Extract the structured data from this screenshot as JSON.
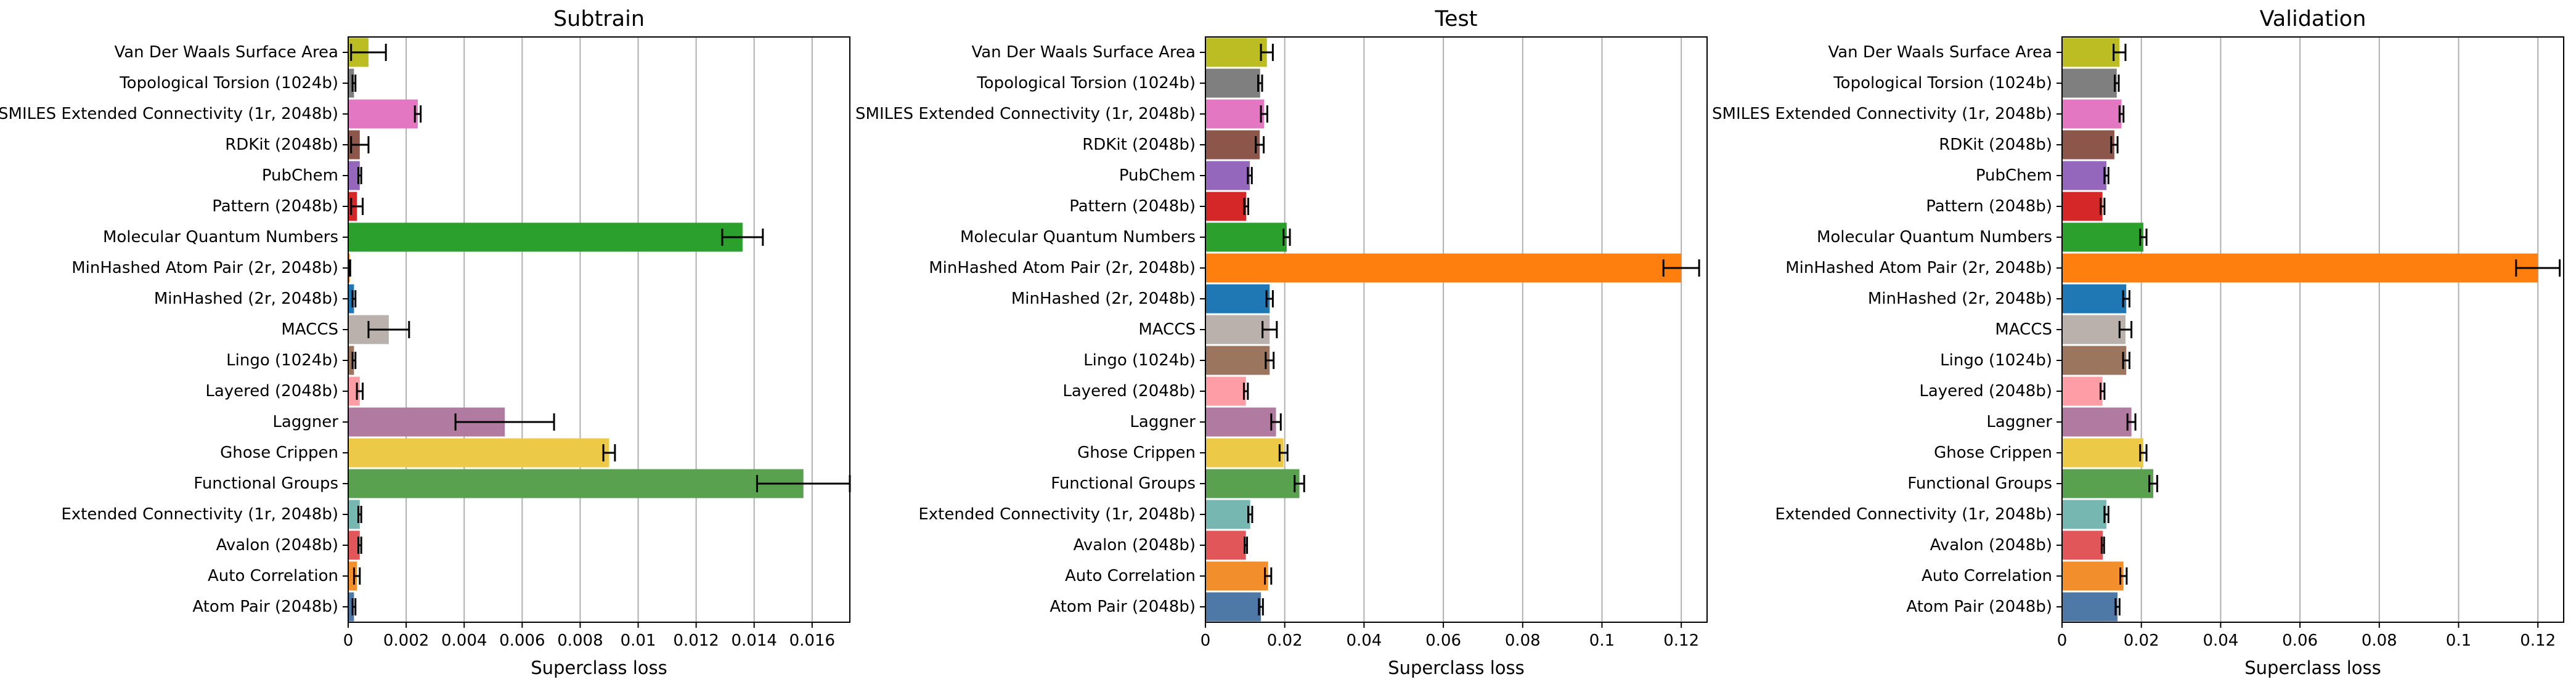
{
  "colors": {
    "Van Der Waals Surface Area": "#bcbd22",
    "Topological Torsion (1024b)": "#7f7f7f",
    "SMILES Extended Connectivity (1r, 2048b)": "#e377c2",
    "RDKit (2048b)": "#8c564b",
    "PubChem": "#9467bd",
    "Pattern (2048b)": "#d62728",
    "Molecular Quantum Numbers": "#2ca02c",
    "MinHashed Atom Pair (2r, 2048b)": "#ff7f0e",
    "MinHashed (2r, 2048b)": "#1f77b4",
    "MACCS": "#bab0ac",
    "Lingo (1024b)": "#9c755f",
    "Layered (2048b)": "#ff9da7",
    "Laggner": "#b07aa1",
    "Ghose Crippen": "#edc948",
    "Functional Groups": "#59a14f",
    "Extended Connectivity (1r, 2048b)": "#76b7b2",
    "Avalon (2048b)": "#e15759",
    "Auto Correlation": "#f28e2b",
    "Atom Pair (2048b)": "#4e79a7"
  },
  "chart_data": [
    {
      "type": "bar",
      "orientation": "horizontal",
      "title": "Subtrain",
      "xlabel": "Superclass loss",
      "ylabel": "",
      "xlim": [
        0,
        0.0173
      ],
      "grid": "x",
      "xticks": [
        0,
        0.002,
        0.004,
        0.006,
        0.008,
        0.01,
        0.012,
        0.014,
        0.016
      ],
      "xtick_labels": [
        "0",
        "0.002",
        "0.004",
        "0.006",
        "0.008",
        "0.01",
        "0.012",
        "0.014",
        "0.016"
      ],
      "categories": [
        "Van Der Waals Surface Area",
        "Topological Torsion (1024b)",
        "SMILES Extended Connectivity (1r, 2048b)",
        "RDKit (2048b)",
        "PubChem",
        "Pattern (2048b)",
        "Molecular Quantum Numbers",
        "MinHashed Atom Pair (2r, 2048b)",
        "MinHashed (2r, 2048b)",
        "MACCS",
        "Lingo (1024b)",
        "Layered (2048b)",
        "Laggner",
        "Ghose Crippen",
        "Functional Groups",
        "Extended Connectivity (1r, 2048b)",
        "Avalon (2048b)",
        "Auto Correlation",
        "Atom Pair (2048b)"
      ],
      "values": [
        0.0007,
        0.0002,
        0.0024,
        0.0004,
        0.0004,
        0.0003,
        0.0136,
        5e-05,
        0.0002,
        0.0014,
        0.0002,
        0.0004,
        0.0054,
        0.009,
        0.0157,
        0.0004,
        0.0004,
        0.0003,
        0.0002
      ],
      "errors": [
        0.0006,
        5e-05,
        0.0001,
        0.0003,
        5e-05,
        0.0002,
        0.0007,
        2e-05,
        5e-05,
        0.0007,
        5e-05,
        0.0001,
        0.0017,
        0.0002,
        0.0016,
        5e-05,
        5e-05,
        0.0001,
        5e-05
      ]
    },
    {
      "type": "bar",
      "orientation": "horizontal",
      "title": "Test",
      "xlabel": "Superclass loss",
      "ylabel": "",
      "xlim": [
        0,
        0.1265
      ],
      "grid": "x",
      "xticks": [
        0,
        0.02,
        0.04,
        0.06,
        0.08,
        0.1,
        0.12
      ],
      "xtick_labels": [
        "0",
        "0.02",
        "0.04",
        "0.06",
        "0.08",
        "0.1",
        "0.12"
      ],
      "categories": [
        "Van Der Waals Surface Area",
        "Topological Torsion (1024b)",
        "SMILES Extended Connectivity (1r, 2048b)",
        "RDKit (2048b)",
        "PubChem",
        "Pattern (2048b)",
        "Molecular Quantum Numbers",
        "MinHashed Atom Pair (2r, 2048b)",
        "MinHashed (2r, 2048b)",
        "MACCS",
        "Lingo (1024b)",
        "Layered (2048b)",
        "Laggner",
        "Ghose Crippen",
        "Functional Groups",
        "Extended Connectivity (1r, 2048b)",
        "Avalon (2048b)",
        "Auto Correlation",
        "Atom Pair (2048b)"
      ],
      "values": [
        0.0155,
        0.0138,
        0.0148,
        0.0137,
        0.0112,
        0.0103,
        0.0205,
        0.12,
        0.0162,
        0.0162,
        0.0162,
        0.0102,
        0.0178,
        0.0197,
        0.0237,
        0.0113,
        0.0102,
        0.0158,
        0.014
      ],
      "errors": [
        0.0015,
        0.0005,
        0.0008,
        0.001,
        0.0005,
        0.0005,
        0.0008,
        0.0045,
        0.0008,
        0.0018,
        0.001,
        0.0005,
        0.0012,
        0.001,
        0.0012,
        0.0005,
        0.0003,
        0.0008,
        0.0005
      ]
    },
    {
      "type": "bar",
      "orientation": "horizontal",
      "title": "Validation",
      "xlabel": "Superclass loss",
      "ylabel": "",
      "xlim": [
        0,
        0.1265
      ],
      "grid": "x",
      "xticks": [
        0,
        0.02,
        0.04,
        0.06,
        0.08,
        0.1,
        0.12
      ],
      "xtick_labels": [
        "0",
        "0.02",
        "0.04",
        "0.06",
        "0.08",
        "0.1",
        "0.12"
      ],
      "categories": [
        "Van Der Waals Surface Area",
        "Topological Torsion (1024b)",
        "SMILES Extended Connectivity (1r, 2048b)",
        "RDKit (2048b)",
        "PubChem",
        "Pattern (2048b)",
        "Molecular Quantum Numbers",
        "MinHashed Atom Pair (2r, 2048b)",
        "MinHashed (2r, 2048b)",
        "MACCS",
        "Lingo (1024b)",
        "Layered (2048b)",
        "Laggner",
        "Ghose Crippen",
        "Functional Groups",
        "Extended Connectivity (1r, 2048b)",
        "Avalon (2048b)",
        "Auto Correlation",
        "Atom Pair (2048b)"
      ],
      "values": [
        0.0145,
        0.0138,
        0.015,
        0.0132,
        0.0112,
        0.0102,
        0.0205,
        0.12,
        0.0162,
        0.016,
        0.0162,
        0.0102,
        0.0175,
        0.0205,
        0.023,
        0.0112,
        0.0103,
        0.0155,
        0.014
      ],
      "errors": [
        0.0015,
        0.0005,
        0.0005,
        0.0008,
        0.0005,
        0.0005,
        0.0008,
        0.0055,
        0.0008,
        0.0015,
        0.0008,
        0.0005,
        0.001,
        0.0008,
        0.001,
        0.0005,
        0.0003,
        0.0008,
        0.0005
      ]
    }
  ]
}
